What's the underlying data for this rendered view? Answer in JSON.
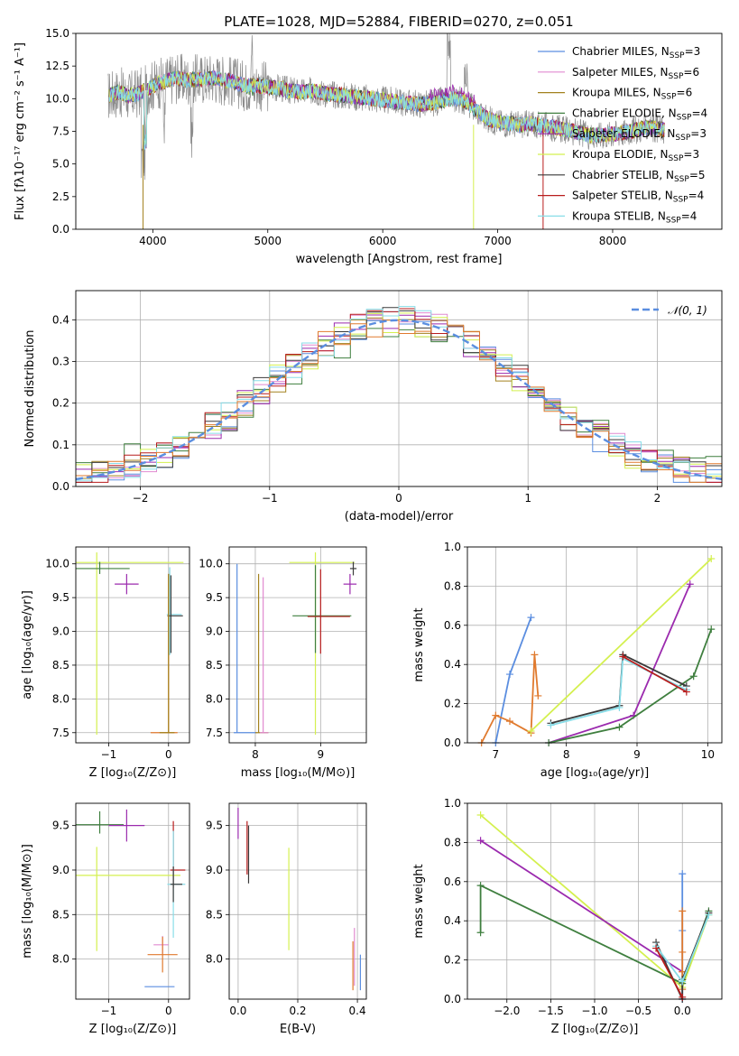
{
  "colors": {
    "c1": "#5b8ee0",
    "c2": "#e18ad0",
    "c3": "#a3811e",
    "c4": "#3f7f3f",
    "c5": "#9b2aae",
    "c6": "#d4f04f",
    "c7": "#3a3a3a",
    "c8": "#b81d1d",
    "c9": "#88dde8",
    "orange": "#e07a2e",
    "gray": "#8c8c8c",
    "normal": "#5b8ee0",
    "grid": "#b0b0b0"
  },
  "chart_data": [
    {
      "type": "line",
      "title": "PLATE=1028, MJD=52884, FIBERID=0270, z=0.051",
      "xlabel": "wavelength [Angstrom, rest frame]",
      "ylabel": "Flux [fλ10⁻¹⁷ erg cm⁻² s⁻¹ A⁻¹]",
      "xlim": [
        3330,
        8950
      ],
      "ylim": [
        0,
        15
      ],
      "xticks": [
        "4000",
        "5000",
        "6000",
        "7000",
        "8000"
      ],
      "yticks": [
        "0.0",
        "2.5",
        "5.0",
        "7.5",
        "10.0",
        "12.5",
        "15.0"
      ],
      "grid": false,
      "legend_position": "top-right",
      "legend": [
        {
          "name": "Chabrier MILES, N",
          "sub": "SSP",
          "suffix": "=3",
          "color": "c1"
        },
        {
          "name": "Salpeter MILES, N",
          "sub": "SSP",
          "suffix": "=6",
          "color": "c2"
        },
        {
          "name": "Kroupa MILES, N",
          "sub": "SSP",
          "suffix": "=6",
          "color": "c3"
        },
        {
          "name": "Chabrier ELODIE, N",
          "sub": "SSP",
          "suffix": "=4",
          "color": "c4"
        },
        {
          "name": "Salpeter ELODIE, N",
          "sub": "SSP",
          "suffix": "=3",
          "color": "c5"
        },
        {
          "name": "Kroupa ELODIE, N",
          "sub": "SSP",
          "suffix": "=3",
          "color": "c6"
        },
        {
          "name": "Chabrier STELIB, N",
          "sub": "SSP",
          "suffix": "=5",
          "color": "c7"
        },
        {
          "name": "Salpeter STELIB, N",
          "sub": "SSP",
          "suffix": "=4",
          "color": "c8"
        },
        {
          "name": "Kroupa STELIB, N",
          "sub": "SSP",
          "suffix": "=4",
          "color": "c9"
        }
      ],
      "data_spectrum_color": "gray",
      "continuum": [
        [
          3600,
          10.2
        ],
        [
          3700,
          10.5
        ],
        [
          3800,
          10.2
        ],
        [
          3900,
          10.5
        ],
        [
          4000,
          11.0
        ],
        [
          4100,
          11.3
        ],
        [
          4200,
          11.6
        ],
        [
          4300,
          11.4
        ],
        [
          4400,
          11.5
        ],
        [
          4500,
          11.6
        ],
        [
          4600,
          11.5
        ],
        [
          4700,
          11.3
        ],
        [
          4800,
          11.0
        ],
        [
          4900,
          11.0
        ],
        [
          5000,
          10.9
        ],
        [
          5100,
          10.8
        ],
        [
          5200,
          10.6
        ],
        [
          5300,
          10.5
        ],
        [
          5400,
          10.6
        ],
        [
          5500,
          10.4
        ],
        [
          5600,
          10.3
        ],
        [
          5700,
          10.2
        ],
        [
          5800,
          10.1
        ],
        [
          5900,
          10.0
        ],
        [
          6000,
          9.9
        ],
        [
          6100,
          9.8
        ],
        [
          6200,
          9.7
        ],
        [
          6300,
          9.6
        ],
        [
          6400,
          9.6
        ],
        [
          6500,
          9.8
        ],
        [
          6600,
          10.0
        ],
        [
          6700,
          9.9
        ],
        [
          6800,
          9.2
        ],
        [
          6900,
          8.5
        ],
        [
          7000,
          8.2
        ],
        [
          7100,
          8.1
        ],
        [
          7200,
          8.0
        ],
        [
          7300,
          8.1
        ],
        [
          7400,
          7.9
        ],
        [
          7500,
          7.8
        ],
        [
          7600,
          7.6
        ],
        [
          7700,
          7.4
        ],
        [
          7800,
          7.2
        ],
        [
          7900,
          7.2
        ],
        [
          8000,
          7.3
        ],
        [
          8100,
          7.4
        ],
        [
          8200,
          7.6
        ],
        [
          8300,
          7.8
        ],
        [
          8400,
          7.7
        ],
        [
          8450,
          7.6
        ]
      ],
      "model_end": {
        "c1": 8450,
        "c2": 8450,
        "c3": 8450,
        "c4": 8450,
        "c5": 8450,
        "c6": 8450,
        "c7": 8450,
        "c8": 8450,
        "c9": 8450
      }
    },
    {
      "type": "step",
      "xlabel": "(data-model)/error",
      "ylabel": "Normed distribution",
      "xlim": [
        -2.5,
        2.5
      ],
      "ylim": [
        0,
        0.47
      ],
      "xticks": [
        "−2",
        "−1",
        "0",
        "1",
        "2"
      ],
      "yticks": [
        "0.0",
        "0.1",
        "0.2",
        "0.3",
        "0.4"
      ],
      "grid": true,
      "legend_position": "top-right",
      "legend": [
        {
          "name": "𝒩(0, 1)",
          "color": "normal",
          "style": "dashed"
        }
      ],
      "bins": 40,
      "series_colors": [
        "c1",
        "c2",
        "c3",
        "c4",
        "c5",
        "c6",
        "c7",
        "c8",
        "c9",
        "orange"
      ]
    },
    {
      "type": "errorbar",
      "xlabel": "Z [log₁₀(Z/Z⊙)]",
      "ylabel": "age  [log₁₀(age/yr)]",
      "xlim": [
        -1.55,
        0.35
      ],
      "ylim": [
        7.35,
        10.25
      ],
      "xticks": [
        "−1",
        "0"
      ],
      "yticks": [
        "7.5",
        "8.0",
        "8.5",
        "9.0",
        "9.5",
        "10.0"
      ],
      "grid": true,
      "points": [
        {
          "x": -1.2,
          "y": 10.02,
          "xerr": [
            1.45,
            1.45
          ],
          "yerr": [
            2.55,
            0.15
          ],
          "color": "c6"
        },
        {
          "x": -1.15,
          "y": 9.93,
          "xerr": [
            0.4,
            0.5
          ],
          "yerr": [
            0.08,
            0.1
          ],
          "color": "c4"
        },
        {
          "x": -0.7,
          "y": 9.7,
          "xerr": [
            0.2,
            0.2
          ],
          "yerr": [
            0.15,
            0.15
          ],
          "color": "c5"
        },
        {
          "x": 0.02,
          "y": 9.25,
          "xerr": [
            0.05,
            0.2
          ],
          "yerr": [
            0.6,
            0.7
          ],
          "color": "c9"
        },
        {
          "x": 0.04,
          "y": 9.23,
          "xerr": [
            0.06,
            0.2
          ],
          "yerr": [
            0.55,
            0.6
          ],
          "color": "c7"
        },
        {
          "x": 0.0,
          "y": 7.5,
          "xerr": [
            0.3,
            0.15
          ],
          "yerr": [
            0.0,
            2.35
          ],
          "color": "orange"
        },
        {
          "x": 0.0,
          "y": 7.5,
          "xerr": [
            0.15,
            0.1
          ],
          "yerr": [
            0.0,
            2.35
          ],
          "color": "c3"
        }
      ]
    },
    {
      "type": "errorbar",
      "xlabel": "mass [log₁₀(M/M⊙)]",
      "ylabel": "",
      "xlim": [
        7.6,
        9.7
      ],
      "ylim": [
        7.35,
        10.25
      ],
      "xticks": [
        "8",
        "9"
      ],
      "yticks": [
        "7.5",
        "8.0",
        "8.5",
        "9.0",
        "9.5",
        "10.0"
      ],
      "grid": true,
      "points": [
        {
          "x": 7.72,
          "y": 7.5,
          "xerr": [
            0.05,
            0.3
          ],
          "yerr": [
            0.0,
            2.5
          ],
          "color": "c1"
        },
        {
          "x": 8.05,
          "y": 7.5,
          "xerr": [
            0.05,
            0.15
          ],
          "yerr": [
            0.0,
            2.35
          ],
          "color": "c3"
        },
        {
          "x": 8.12,
          "y": 7.5,
          "xerr": [
            0.05,
            0.08
          ],
          "yerr": [
            0.0,
            2.3
          ],
          "color": "c2"
        },
        {
          "x": 8.92,
          "y": 10.02,
          "xerr": [
            0.4,
            0.6
          ],
          "yerr": [
            2.55,
            0.15
          ],
          "color": "c6"
        },
        {
          "x": 8.92,
          "y": 9.23,
          "xerr": [
            0.35,
            0.55
          ],
          "yerr": [
            0.55,
            0.75
          ],
          "color": "c4"
        },
        {
          "x": 9.0,
          "y": 9.22,
          "xerr": [
            0.2,
            0.45
          ],
          "yerr": [
            0.55,
            0.7
          ],
          "color": "c8"
        },
        {
          "x": 9.5,
          "y": 9.93,
          "xerr": [
            0.05,
            0.05
          ],
          "yerr": [
            0.1,
            0.1
          ],
          "color": "c7"
        },
        {
          "x": 9.45,
          "y": 9.7,
          "xerr": [
            0.1,
            0.1
          ],
          "yerr": [
            0.15,
            0.15
          ],
          "color": "c5"
        }
      ]
    },
    {
      "type": "line",
      "xlabel": "age  [log₁₀(age/yr)]",
      "ylabel": "mass weight",
      "xlim": [
        6.6,
        10.2
      ],
      "ylim": [
        0,
        1.0
      ],
      "xticks": [
        "7",
        "8",
        "9",
        "10"
      ],
      "yticks": [
        "0.0",
        "0.2",
        "0.4",
        "0.6",
        "0.8",
        "1.0"
      ],
      "grid": true,
      "series": [
        {
          "color": "c1",
          "x": [
            7.0,
            7.2,
            7.5
          ],
          "y": [
            0.0,
            0.35,
            0.64
          ]
        },
        {
          "color": "orange",
          "x": [
            6.8,
            7.0,
            7.2,
            7.5,
            7.55,
            7.6
          ],
          "y": [
            0.0,
            0.14,
            0.11,
            0.05,
            0.45,
            0.24
          ]
        },
        {
          "color": "c6",
          "x": [
            7.5,
            10.05
          ],
          "y": [
            0.06,
            0.94
          ]
        },
        {
          "color": "c5",
          "x": [
            7.75,
            8.95,
            9.75
          ],
          "y": [
            0.0,
            0.14,
            0.81
          ]
        },
        {
          "color": "c4",
          "x": [
            7.75,
            8.75,
            9.8,
            10.05
          ],
          "y": [
            0.0,
            0.08,
            0.34,
            0.58
          ]
        },
        {
          "color": "c7",
          "x": [
            7.78,
            8.75,
            8.8,
            9.7
          ],
          "y": [
            0.1,
            0.19,
            0.45,
            0.29
          ]
        },
        {
          "color": "c9",
          "x": [
            7.78,
            8.75,
            8.8,
            9.7
          ],
          "y": [
            0.09,
            0.18,
            0.43,
            0.27
          ]
        },
        {
          "color": "c8",
          "x": [
            8.8,
            9.7
          ],
          "y": [
            0.44,
            0.26
          ]
        }
      ]
    },
    {
      "type": "errorbar",
      "xlabel": "Z [log₁₀(Z/Z⊙)]",
      "ylabel": "mass [log₁₀(M/M⊙)]",
      "xlim": [
        -1.55,
        0.35
      ],
      "ylim": [
        7.55,
        9.75
      ],
      "xticks": [
        "−1",
        "0"
      ],
      "yticks": [
        "8.0",
        "8.5",
        "9.0",
        "9.5"
      ],
      "grid": true,
      "points": [
        {
          "x": -1.2,
          "y": 8.94,
          "xerr": [
            1.4,
            1.4
          ],
          "yerr": [
            0.85,
            0.32
          ],
          "color": "c6"
        },
        {
          "x": -1.15,
          "y": 9.51,
          "xerr": [
            0.4,
            0.4
          ],
          "yerr": [
            0.1,
            0.15
          ],
          "color": "c4"
        },
        {
          "x": -0.7,
          "y": 9.5,
          "xerr": [
            0.3,
            0.3
          ],
          "yerr": [
            0.18,
            0.18
          ],
          "color": "c5"
        },
        {
          "x": 0.08,
          "y": 9.0,
          "xerr": [
            0.05,
            0.2
          ],
          "yerr": [
            0.2,
            0.55
          ],
          "color": "c8"
        },
        {
          "x": 0.08,
          "y": 8.84,
          "xerr": [
            0.1,
            0.2
          ],
          "yerr": [
            0.6,
            0.6
          ],
          "color": "c9"
        },
        {
          "x": 0.08,
          "y": 8.84,
          "xerr": [
            0.05,
            0.15
          ],
          "yerr": [
            0.2,
            0.2
          ],
          "color": "c7"
        },
        {
          "x": -0.1,
          "y": 8.16,
          "xerr": [
            0.15,
            0.1
          ],
          "yerr": [
            0.1,
            0.1
          ],
          "color": "c2"
        },
        {
          "x": -0.1,
          "y": 8.05,
          "xerr": [
            0.25,
            0.25
          ],
          "yerr": [
            0.2,
            0.2
          ],
          "color": "orange"
        },
        {
          "x": -0.1,
          "y": 7.69,
          "xerr": [
            0.3,
            0.2
          ],
          "yerr": [
            0.0,
            0.0
          ],
          "color": "c1"
        }
      ]
    },
    {
      "type": "errorbar",
      "xlabel": "E(B-V)",
      "ylabel": "",
      "xlim": [
        -0.03,
        0.43
      ],
      "ylim": [
        7.55,
        9.75
      ],
      "xticks": [
        "0.0",
        "0.2",
        "0.4"
      ],
      "yticks": [
        "8.0",
        "8.5",
        "9.0",
        "9.5"
      ],
      "grid": true,
      "points": [
        {
          "x": 0.0,
          "y": 9.5,
          "xerr": [
            0,
            0
          ],
          "yerr": [
            0.15,
            0.2
          ],
          "color": "c5"
        },
        {
          "x": 0.03,
          "y": 9.3,
          "xerr": [
            0,
            0
          ],
          "yerr": [
            0.35,
            0.25
          ],
          "color": "c8"
        },
        {
          "x": 0.035,
          "y": 9.2,
          "xerr": [
            0,
            0
          ],
          "yerr": [
            0.35,
            0.3
          ],
          "color": "c7"
        },
        {
          "x": 0.17,
          "y": 8.65,
          "xerr": [
            0,
            0
          ],
          "yerr": [
            0.55,
            0.6
          ],
          "color": "c6"
        },
        {
          "x": 0.39,
          "y": 8.05,
          "xerr": [
            0,
            0
          ],
          "yerr": [
            0.35,
            0.3
          ],
          "color": "c2"
        },
        {
          "x": 0.385,
          "y": 7.95,
          "xerr": [
            0,
            0
          ],
          "yerr": [
            0.3,
            0.25
          ],
          "color": "orange"
        },
        {
          "x": 0.41,
          "y": 7.85,
          "xerr": [
            0,
            0
          ],
          "yerr": [
            0.2,
            0.2
          ],
          "color": "c1"
        }
      ]
    },
    {
      "type": "line",
      "xlabel": "Z [log₁₀(Z/Z⊙)]",
      "ylabel": "mass weight",
      "xlim": [
        -2.45,
        0.45
      ],
      "ylim": [
        0,
        1.0
      ],
      "xticks": [
        "−2.0",
        "−1.5",
        "−1.0",
        "−0.5",
        "0.0"
      ],
      "yticks": [
        "0.0",
        "0.2",
        "0.4",
        "0.6",
        "0.8",
        "1.0"
      ],
      "grid": true,
      "series": [
        {
          "color": "c6",
          "x": [
            -2.3,
            0.0,
            0.3
          ],
          "y": [
            0.94,
            0.06,
            0.43
          ]
        },
        {
          "color": "c5",
          "x": [
            -2.3,
            0.0
          ],
          "y": [
            0.81,
            0.14
          ]
        },
        {
          "color": "c4",
          "x": [
            -2.3,
            -2.3,
            0.0,
            0.3
          ],
          "y": [
            0.34,
            0.58,
            0.08,
            0.45
          ]
        },
        {
          "color": "c1",
          "x": [
            0.0,
            0.0,
            0.0
          ],
          "y": [
            0.0,
            0.35,
            0.64
          ]
        },
        {
          "color": "orange",
          "x": [
            0.0,
            0.0,
            0.0,
            0.0
          ],
          "y": [
            0.05,
            0.14,
            0.24,
            0.45
          ]
        },
        {
          "color": "c7",
          "x": [
            -0.3,
            0.0,
            0.0,
            0.3
          ],
          "y": [
            0.29,
            0.0,
            0.1,
            0.44
          ]
        },
        {
          "color": "c9",
          "x": [
            -0.3,
            0.0,
            0.3
          ],
          "y": [
            0.27,
            0.09,
            0.43
          ]
        },
        {
          "color": "c8",
          "x": [
            -0.3,
            0.0
          ],
          "y": [
            0.26,
            0.01
          ]
        }
      ]
    }
  ]
}
